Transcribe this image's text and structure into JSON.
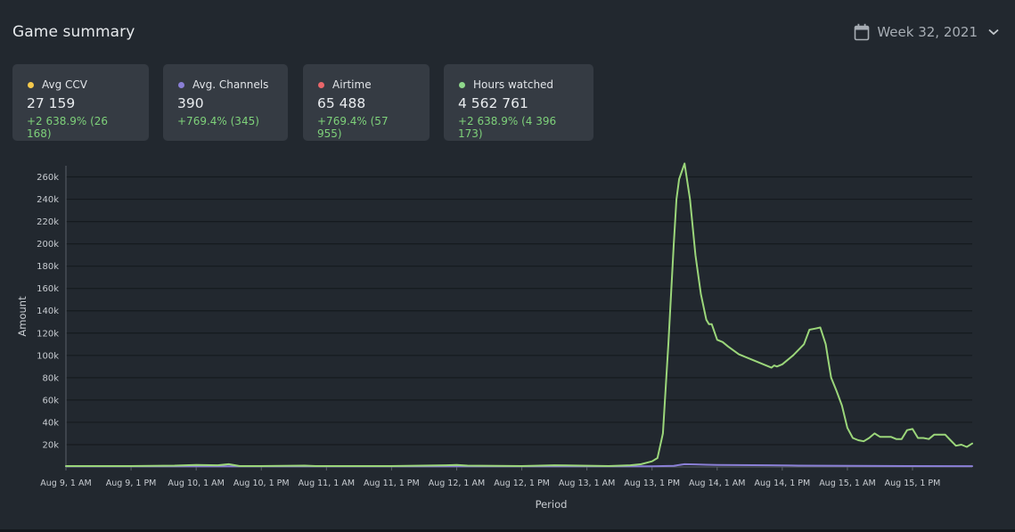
{
  "header": {
    "title": "Game summary",
    "period_label": "Week 32, 2021"
  },
  "cards": [
    {
      "label": "Avg CCV",
      "value": "27 159",
      "change": "+2 638.9% (26 168)",
      "dot_color": "#f5c94c"
    },
    {
      "label": "Avg. Channels",
      "value": "390",
      "change": "+769.4% (345)",
      "dot_color": "#8a7fd6"
    },
    {
      "label": "Airtime",
      "value": "65 488",
      "change": "+769.4% (57 955)",
      "dot_color": "#e9666a"
    },
    {
      "label": "Hours watched",
      "value": "4 562 761",
      "change": "+2 638.9% (4 396 173)",
      "dot_color": "#8fd88b"
    }
  ],
  "colors": {
    "hours_line": "#9bd67a",
    "channels_line": "#8a7fd6",
    "grid": "#151a1f",
    "axis_text": "#c8ccd1"
  },
  "chart_data": {
    "type": "line",
    "xlabel": "Period",
    "ylabel": "Amount",
    "ylim": [
      0,
      270000
    ],
    "yticks": [
      20000,
      40000,
      60000,
      80000,
      100000,
      120000,
      140000,
      160000,
      180000,
      200000,
      220000,
      240000,
      260000
    ],
    "ytick_labels": [
      "20k",
      "40k",
      "60k",
      "80k",
      "100k",
      "120k",
      "140k",
      "160k",
      "180k",
      "200k",
      "220k",
      "240k",
      "260k"
    ],
    "x_unit": "hours since Aug 9, 1 AM",
    "xlim": [
      0,
      167
    ],
    "xticks": [
      0,
      12,
      24,
      36,
      48,
      60,
      72,
      84,
      96,
      108,
      120,
      132,
      144,
      156
    ],
    "xtick_labels": [
      "Aug 9, 1 AM",
      "Aug 9, 1 PM",
      "Aug 10, 1 AM",
      "Aug 10, 1 PM",
      "Aug 11, 1 AM",
      "Aug 11, 1 PM",
      "Aug 12, 1 AM",
      "Aug 12, 1 PM",
      "Aug 13, 1 AM",
      "Aug 13, 1 PM",
      "Aug 14, 1 AM",
      "Aug 14, 1 PM",
      "Aug 15, 1 AM",
      "Aug 15, 1 PM"
    ],
    "series": [
      {
        "name": "Hours watched",
        "x": [
          0,
          12,
          20,
          24,
          28,
          30,
          32,
          36,
          44,
          46,
          48,
          60,
          70,
          72,
          74,
          84,
          90,
          100,
          104,
          106,
          108,
          109,
          110,
          111,
          112,
          112.5,
          113,
          114,
          115,
          116,
          117,
          118,
          118.5,
          119,
          120,
          121,
          122,
          124,
          126,
          128,
          130,
          130.5,
          131,
          132,
          134,
          136,
          137,
          138,
          139,
          140,
          140.5,
          141,
          142,
          143,
          144,
          145,
          146,
          147,
          148,
          149,
          150,
          151,
          152,
          153,
          154,
          155,
          156,
          157,
          158,
          159,
          160,
          161,
          162,
          163,
          164,
          165,
          166,
          167
        ],
        "y": [
          800,
          800,
          1200,
          1800,
          1500,
          2500,
          800,
          800,
          1200,
          800,
          800,
          800,
          1500,
          1800,
          1200,
          800,
          1500,
          800,
          1500,
          2500,
          5000,
          8000,
          30000,
          110000,
          200000,
          240000,
          258000,
          272000,
          240000,
          190000,
          155000,
          132000,
          128000,
          128000,
          114000,
          112000,
          108000,
          101000,
          97000,
          93000,
          89000,
          91000,
          90000,
          92000,
          100000,
          110000,
          123000,
          124000,
          125000,
          110000,
          95000,
          80000,
          68000,
          55000,
          35000,
          26000,
          24000,
          23000,
          26000,
          30000,
          27000,
          27000,
          27000,
          25000,
          25000,
          33000,
          34000,
          26000,
          26000,
          25000,
          29000,
          29000,
          29000,
          24000,
          19000,
          20000,
          18000,
          21000
        ]
      },
      {
        "name": "Avg. Channels",
        "x": [
          0,
          108,
          112,
          114,
          116,
          118,
          120,
          130,
          135,
          145,
          150,
          155,
          167
        ],
        "y": [
          600,
          600,
          1000,
          2500,
          2300,
          2000,
          1800,
          1500,
          1200,
          1000,
          900,
          800,
          700
        ]
      }
    ]
  }
}
